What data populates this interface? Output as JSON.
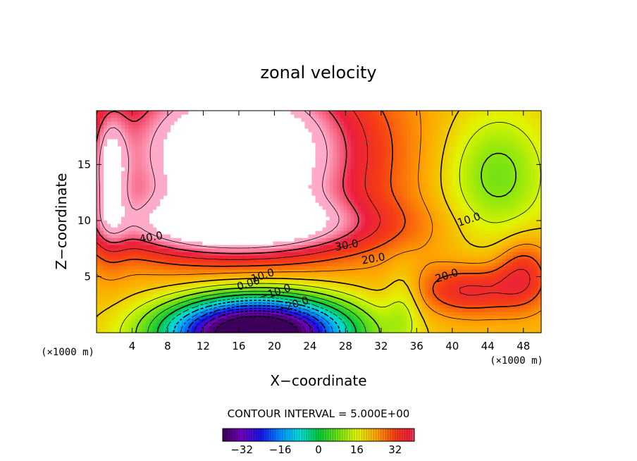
{
  "chart_data": {
    "type": "contour",
    "title": "zonal velocity",
    "xlabel": "X−coordinate",
    "ylabel": "Z−coordinate",
    "x_unit_label": "(×1000 m)",
    "y_unit_label": "(×1000 m)",
    "xlim": [
      0,
      50
    ],
    "ylim": [
      0,
      19.8
    ],
    "x_ticks": [
      4,
      8,
      12,
      16,
      20,
      24,
      28,
      32,
      36,
      40,
      44,
      48
    ],
    "x_tick_labels": [
      "4",
      "8",
      "12",
      "16",
      "20",
      "24",
      "28",
      "32",
      "36",
      "40",
      "44",
      "48"
    ],
    "y_ticks": [
      5,
      10,
      15
    ],
    "y_tick_labels": [
      "5",
      "10",
      "15"
    ],
    "contour_interval_text": "CONTOUR INTERVAL = 5.000E+00",
    "contour_interval": 5,
    "contour_labels": [
      {
        "text": "40.0",
        "x": 6.2,
        "y": 8.2
      },
      {
        "text": "30.0",
        "x": 28.2,
        "y": 7.5
      },
      {
        "text": "20.0",
        "x": 31.2,
        "y": 6.3
      },
      {
        "text": "10.0",
        "x": 42.0,
        "y": 9.8
      },
      {
        "text": "20.0",
        "x": 39.5,
        "y": 4.8
      },
      {
        "text": "10.0",
        "x": 18.8,
        "y": 4.8
      },
      {
        "text": "0.00",
        "x": 17.2,
        "y": 4.1
      },
      {
        "text": "−10.0",
        "x": 20.2,
        "y": 3.3
      },
      {
        "text": "−20.0",
        "x": 22.2,
        "y": 2.2
      }
    ],
    "colorbar": {
      "range": [
        -40,
        40
      ],
      "ticks": [
        -32,
        -16,
        0,
        16,
        32
      ],
      "tick_labels": [
        "−32",
        "−16",
        "0",
        "16",
        "32"
      ]
    }
  },
  "colors": {
    "max_fill": "#ffffff",
    "line": "#000000"
  }
}
